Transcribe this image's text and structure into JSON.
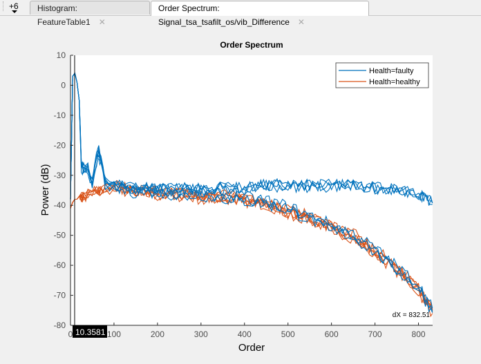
{
  "tabs": {
    "overflow": "+6",
    "items": [
      {
        "label": "Histogram: FeatureTable1"
      },
      {
        "label": "Order Spectrum: Signal_tsa_tsafilt_os/vib_Difference"
      }
    ]
  },
  "chart_data": {
    "type": "line",
    "title": "Order Spectrum",
    "xlabel": "Order",
    "ylabel": "Power (dB)",
    "xlim": [
      0,
      832.51
    ],
    "ylim": [
      -80,
      10
    ],
    "xticks": [
      "0",
      "100",
      "200",
      "300",
      "400",
      "500",
      "600",
      "700",
      "800"
    ],
    "yticks": [
      "10",
      "0",
      "-10",
      "-20",
      "-30",
      "-40",
      "-50",
      "-60",
      "-70",
      "-80"
    ],
    "legend_position": "top-right",
    "x": [
      0,
      5,
      10,
      15,
      20,
      25,
      30,
      40,
      50,
      60,
      65,
      70,
      80,
      100,
      150,
      200,
      250,
      300,
      350,
      400,
      450,
      500,
      550,
      600,
      650,
      700,
      750,
      800,
      832
    ],
    "series": [
      {
        "name": "Health=faulty",
        "color": "#0072bd",
        "traces": 4,
        "values": [
          -38,
          3,
          4,
          1,
          -5,
          -27,
          -28,
          -28,
          -33,
          -24,
          -22,
          -25,
          -33,
          -34,
          -35,
          -35,
          -35,
          -35,
          -35,
          -35,
          -34,
          -34,
          -34,
          -34,
          -34,
          -35,
          -35,
          -37,
          -40
        ]
      },
      {
        "name": "Health=faulty",
        "color": "#0072bd",
        "traces": 3,
        "values": [
          -38,
          3,
          4,
          1,
          -5,
          -27,
          -28,
          -29,
          -33,
          -26,
          -23,
          -26,
          -33,
          -34,
          -35,
          -35,
          -36,
          -36,
          -37,
          -38,
          -39,
          -41,
          -44,
          -47,
          -50,
          -55,
          -61,
          -67,
          -75
        ]
      },
      {
        "name": "Health=healthy",
        "color": "#d95319",
        "traces": 6,
        "values": [
          -41,
          -39,
          -38,
          -38,
          -37,
          -37,
          -37,
          -36,
          -36,
          -35,
          -35,
          -35,
          -34,
          -34,
          -35,
          -36,
          -36,
          -37,
          -37,
          -38,
          -39,
          -42,
          -44,
          -47,
          -50,
          -55,
          -61,
          -68,
          -75
        ]
      }
    ],
    "annotations": {
      "cursor_x": "10.3581",
      "delta": "dX = 832.51"
    }
  }
}
